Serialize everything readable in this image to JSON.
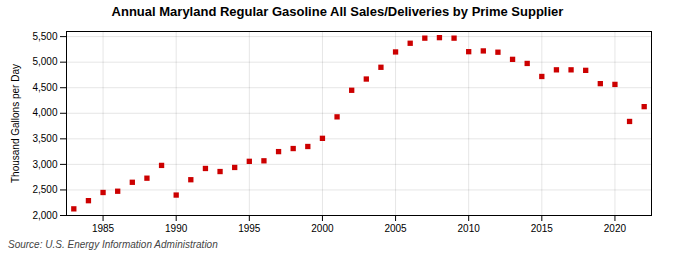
{
  "chart_data": {
    "type": "scatter",
    "title": "Annual Maryland Regular Gasoline All Sales/Deliveries by Prime Supplier",
    "ylabel": "Thousand Gallons per Day",
    "caption": "Source: U.S. Energy Information Administration",
    "color": "#cc0000",
    "marker": "square",
    "grid": true,
    "xlim": [
      1982.5,
      2022.5
    ],
    "ylim": [
      2000,
      5600
    ],
    "xticks": [
      1985,
      1990,
      1995,
      2000,
      2005,
      2010,
      2015,
      2020
    ],
    "yticks": [
      {
        "value": 2000,
        "label": "2,000"
      },
      {
        "value": 2500,
        "label": "2,500"
      },
      {
        "value": 3000,
        "label": "3,000"
      },
      {
        "value": 3500,
        "label": "3,500"
      },
      {
        "value": 4000,
        "label": "4,000"
      },
      {
        "value": 4500,
        "label": "4,500"
      },
      {
        "value": 5000,
        "label": "5,000"
      },
      {
        "value": 5500,
        "label": "5,500"
      }
    ],
    "x": [
      1983,
      1984,
      1985,
      1986,
      1987,
      1988,
      1989,
      1990,
      1991,
      1992,
      1993,
      1994,
      1995,
      1996,
      1997,
      1998,
      1999,
      2000,
      2001,
      2002,
      2003,
      2004,
      2005,
      2006,
      2007,
      2008,
      2009,
      2010,
      2011,
      2012,
      2013,
      2014,
      2015,
      2016,
      2017,
      2018,
      2019,
      2020,
      2021,
      2022
    ],
    "values": [
      2130,
      2290,
      2450,
      2475,
      2650,
      2730,
      2980,
      2400,
      2700,
      2920,
      2860,
      2940,
      3060,
      3070,
      3250,
      3310,
      3350,
      3510,
      3930,
      4450,
      4670,
      4900,
      5200,
      5370,
      5470,
      5480,
      5470,
      5205,
      5220,
      5195,
      5055,
      4975,
      4720,
      4850,
      4850,
      4840,
      4580,
      4565,
      3840,
      4130
    ]
  }
}
